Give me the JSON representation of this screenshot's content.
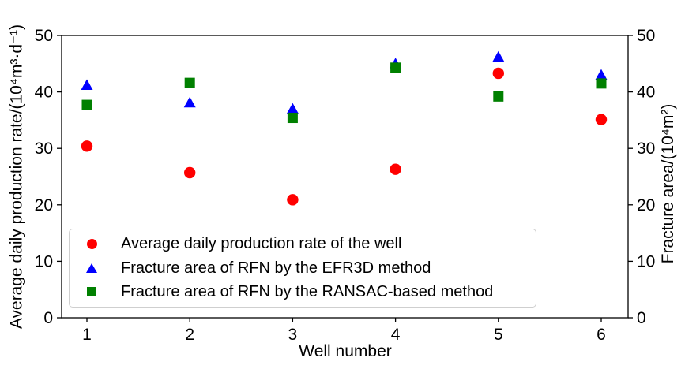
{
  "chart_data": {
    "type": "scatter",
    "x": [
      1,
      2,
      3,
      4,
      5,
      6
    ],
    "xticks": [
      1,
      2,
      3,
      4,
      5,
      6
    ],
    "yticks": [
      0,
      10,
      20,
      30,
      40,
      50
    ],
    "ylim": [
      0,
      50
    ],
    "ylim_right": [
      0,
      50
    ],
    "title": "",
    "xlabel": "Well number",
    "ylabel_left": "Average daily production rate/(10⁴m³·d⁻¹)",
    "ylabel_right": "Fracture area/(10⁴m²)",
    "grid": false,
    "legend_position": "lower-left",
    "series": [
      {
        "name": "Average daily production rate of the well",
        "axis": "left",
        "marker": "circle",
        "color": "#ff0000",
        "values": [
          30.4,
          25.7,
          20.9,
          26.3,
          43.3,
          35.1
        ]
      },
      {
        "name": "Fracture area of RFN by the EFR3D method",
        "axis": "right",
        "marker": "triangle",
        "color": "#0000ff",
        "values": [
          41.2,
          38.1,
          37.0,
          45.0,
          46.2,
          43.0
        ]
      },
      {
        "name": "Fracture area of RFN by the RANSAC-based method",
        "axis": "right",
        "marker": "square",
        "color": "#008000",
        "values": [
          37.7,
          41.6,
          35.4,
          44.3,
          39.2,
          41.5
        ]
      }
    ]
  }
}
